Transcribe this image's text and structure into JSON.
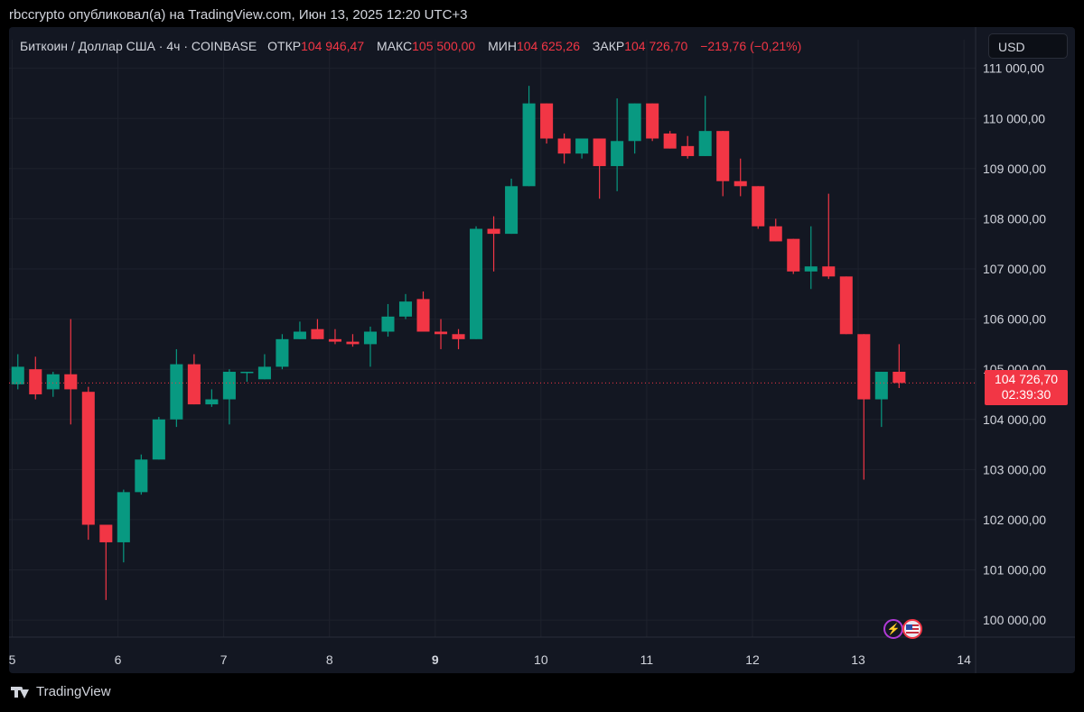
{
  "header": {
    "text": "rbccrypto опубликовал(а) на TradingView.com, Июн 13, 2025 12:20 UTC+3"
  },
  "symbol": {
    "name": "Биткоин / Доллар США · 4ч · COINBASE",
    "open_label": "ОТКР",
    "open_value": "104 946,47",
    "high_label": "МАКС",
    "high_value": "105 500,00",
    "low_label": "МИН",
    "low_value": "104 625,26",
    "close_label": "ЗАКР",
    "close_value": "104 726,70",
    "change": "−219,76 (−0,21%)"
  },
  "currency_button": "USD",
  "price_label": {
    "price": "104 726,70",
    "countdown": "02:39:30"
  },
  "footer": {
    "brand": "TradingView"
  },
  "colors": {
    "up": "#089981",
    "down": "#f23645",
    "background": "#131722",
    "grid": "#1e222d",
    "text": "#d1d4dc"
  },
  "icons": [
    "flash-event-icon",
    "us-flag-event-icon",
    "tradingview-logo-icon"
  ],
  "chart_data": {
    "type": "candlestick",
    "interval": "4h",
    "x_axis": {
      "range": [
        4.97,
        14.11
      ],
      "ticks": [
        {
          "v": 5,
          "label": "5"
        },
        {
          "v": 6,
          "label": "6"
        },
        {
          "v": 7,
          "label": "7"
        },
        {
          "v": 8,
          "label": "8"
        },
        {
          "v": 9,
          "label": "9",
          "bold": true
        },
        {
          "v": 10,
          "label": "10"
        },
        {
          "v": 11,
          "label": "11"
        },
        {
          "v": 12,
          "label": "12"
        },
        {
          "v": 13,
          "label": "13"
        },
        {
          "v": 14,
          "label": "14"
        }
      ]
    },
    "y_axis": {
      "range": [
        99660,
        111570
      ],
      "ticks": [
        100000,
        101000,
        102000,
        103000,
        104000,
        105000,
        106000,
        107000,
        108000,
        109000,
        110000,
        111000
      ],
      "tick_labels": [
        "100 000,00",
        "101 000,00",
        "102 000,00",
        "103 000,00",
        "104 000,00",
        "105 000,00",
        "106 000,00",
        "107 000,00",
        "108 000,00",
        "109 000,00",
        "110 000,00",
        "111 000,00"
      ]
    },
    "current_price": 104726.7,
    "grid": true,
    "candles": [
      {
        "o": 104700,
        "h": 105300,
        "l": 104600,
        "c": 105050
      },
      {
        "o": 105000,
        "h": 105250,
        "l": 104400,
        "c": 104500
      },
      {
        "o": 104600,
        "h": 104950,
        "l": 104450,
        "c": 104900
      },
      {
        "o": 104900,
        "h": 106000,
        "l": 103900,
        "c": 104600
      },
      {
        "o": 104550,
        "h": 104650,
        "l": 101600,
        "c": 101900
      },
      {
        "o": 101900,
        "h": 101900,
        "l": 100400,
        "c": 101550
      },
      {
        "o": 101550,
        "h": 102600,
        "l": 101150,
        "c": 102550
      },
      {
        "o": 102550,
        "h": 103300,
        "l": 102500,
        "c": 103200
      },
      {
        "o": 103200,
        "h": 104050,
        "l": 103200,
        "c": 104000
      },
      {
        "o": 104000,
        "h": 105400,
        "l": 103850,
        "c": 105100
      },
      {
        "o": 105100,
        "h": 105300,
        "l": 104300,
        "c": 104300
      },
      {
        "o": 104300,
        "h": 104600,
        "l": 104250,
        "c": 104400
      },
      {
        "o": 104400,
        "h": 105000,
        "l": 103900,
        "c": 104950
      },
      {
        "o": 104950,
        "h": 104950,
        "l": 104750,
        "c": 104950
      },
      {
        "o": 104800,
        "h": 105300,
        "l": 104800,
        "c": 105050
      },
      {
        "o": 105050,
        "h": 105700,
        "l": 105000,
        "c": 105600
      },
      {
        "o": 105600,
        "h": 105950,
        "l": 105600,
        "c": 105750
      },
      {
        "o": 105800,
        "h": 106000,
        "l": 105600,
        "c": 105600
      },
      {
        "o": 105600,
        "h": 105800,
        "l": 105500,
        "c": 105550
      },
      {
        "o": 105550,
        "h": 105700,
        "l": 105450,
        "c": 105500
      },
      {
        "o": 105500,
        "h": 105850,
        "l": 105050,
        "c": 105750
      },
      {
        "o": 105750,
        "h": 106300,
        "l": 105650,
        "c": 106050
      },
      {
        "o": 106050,
        "h": 106500,
        "l": 106000,
        "c": 106350
      },
      {
        "o": 106400,
        "h": 106550,
        "l": 105750,
        "c": 105750
      },
      {
        "o": 105750,
        "h": 106000,
        "l": 105400,
        "c": 105700
      },
      {
        "o": 105700,
        "h": 105800,
        "l": 105400,
        "c": 105600
      },
      {
        "o": 105600,
        "h": 107850,
        "l": 105600,
        "c": 107800
      },
      {
        "o": 107800,
        "h": 108050,
        "l": 106950,
        "c": 107700
      },
      {
        "o": 107700,
        "h": 108800,
        "l": 107700,
        "c": 108650
      },
      {
        "o": 108650,
        "h": 110650,
        "l": 108650,
        "c": 110300
      },
      {
        "o": 110300,
        "h": 110300,
        "l": 109500,
        "c": 109600
      },
      {
        "o": 109600,
        "h": 109700,
        "l": 109100,
        "c": 109300
      },
      {
        "o": 109300,
        "h": 109600,
        "l": 109200,
        "c": 109600
      },
      {
        "o": 109600,
        "h": 109600,
        "l": 108400,
        "c": 109050
      },
      {
        "o": 109050,
        "h": 110400,
        "l": 108550,
        "c": 109550
      },
      {
        "o": 109550,
        "h": 110300,
        "l": 109300,
        "c": 110300
      },
      {
        "o": 110300,
        "h": 110300,
        "l": 109550,
        "c": 109600
      },
      {
        "o": 109700,
        "h": 109750,
        "l": 109400,
        "c": 109400
      },
      {
        "o": 109450,
        "h": 109650,
        "l": 109200,
        "c": 109250
      },
      {
        "o": 109250,
        "h": 110450,
        "l": 109250,
        "c": 109750
      },
      {
        "o": 109750,
        "h": 109750,
        "l": 108450,
        "c": 108750
      },
      {
        "o": 108750,
        "h": 109200,
        "l": 108450,
        "c": 108650
      },
      {
        "o": 108650,
        "h": 108650,
        "l": 107800,
        "c": 107850
      },
      {
        "o": 107850,
        "h": 108000,
        "l": 107550,
        "c": 107550
      },
      {
        "o": 107600,
        "h": 107600,
        "l": 106900,
        "c": 106950
      },
      {
        "o": 106950,
        "h": 107850,
        "l": 106600,
        "c": 107050
      },
      {
        "o": 107050,
        "h": 108500,
        "l": 106800,
        "c": 106850
      },
      {
        "o": 106850,
        "h": 106850,
        "l": 105700,
        "c": 105700
      },
      {
        "o": 105700,
        "h": 105700,
        "l": 102800,
        "c": 104400
      },
      {
        "o": 104400,
        "h": 104950,
        "l": 103850,
        "c": 104950
      },
      {
        "o": 104950,
        "h": 105500,
        "l": 104625,
        "c": 104727
      }
    ]
  }
}
